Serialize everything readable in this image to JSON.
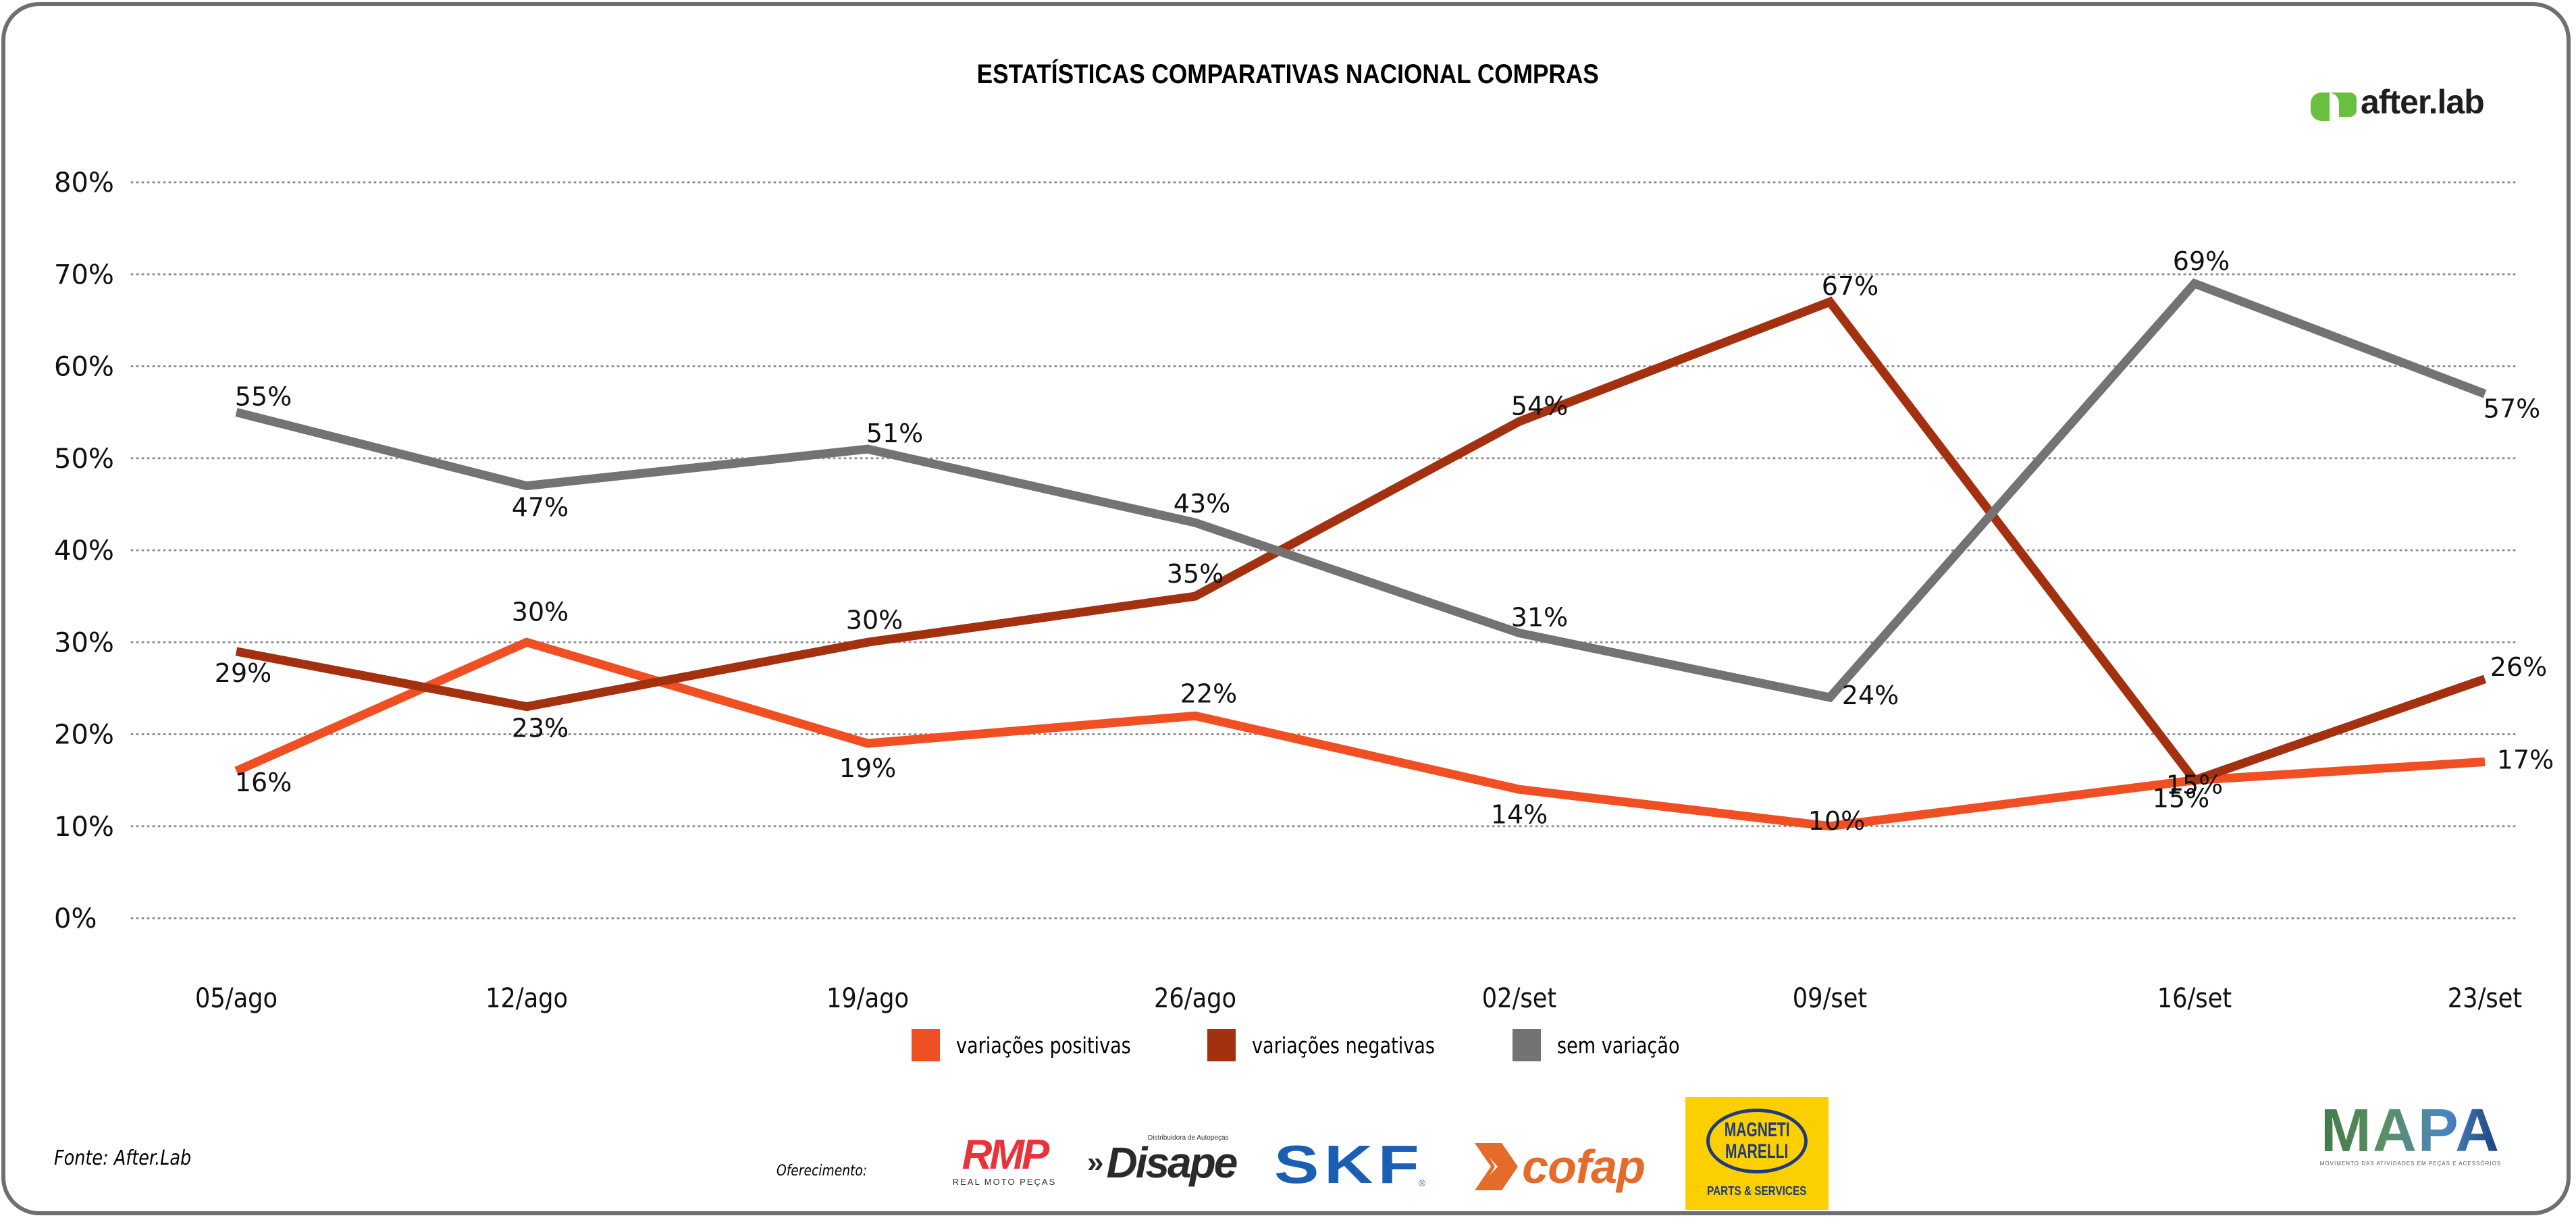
{
  "header": {
    "title": "ESTATÍSTICAS COMPARATIVAS NACIONAL COMPRAS",
    "brand": "after.lab",
    "brand_color": "#6bbf3f"
  },
  "chart_data": {
    "type": "line",
    "title": "ESTATÍSTICAS COMPARATIVAS NACIONAL COMPRAS",
    "xlabel": "",
    "ylabel": "",
    "categories": [
      "05/ago",
      "12/ago",
      "19/ago",
      "26/ago",
      "02/set",
      "09/set",
      "16/set",
      "23/set"
    ],
    "y_ticks": [
      "0%",
      "10%",
      "20%",
      "30%",
      "40%",
      "50%",
      "60%",
      "70%",
      "80%"
    ],
    "ylim": [
      0,
      80
    ],
    "grid": true,
    "grid_style": "dotted",
    "legend_position": "bottom",
    "series": [
      {
        "name": "variações positivas",
        "color": "#f04e23",
        "values": [
          16,
          30,
          19,
          22,
          14,
          10,
          15,
          17
        ],
        "labels": [
          "16%",
          "30%",
          "19%",
          "22%",
          "14%",
          "10%",
          "15%",
          "17%"
        ]
      },
      {
        "name": "variações negativas",
        "color": "#a3300f",
        "values": [
          29,
          23,
          30,
          35,
          54,
          67,
          15,
          26
        ],
        "labels": [
          "29%",
          "23%",
          "30%",
          "35%",
          "54%",
          "67%",
          "15%",
          "26%"
        ]
      },
      {
        "name": "sem variação",
        "color": "#737373",
        "values": [
          55,
          47,
          51,
          43,
          31,
          24,
          69,
          57
        ],
        "labels": [
          "55%",
          "47%",
          "51%",
          "43%",
          "31%",
          "24%",
          "69%",
          "57%"
        ]
      }
    ]
  },
  "footer": {
    "source": "Fonte: After.Lab",
    "offer_label": "Oferecimento:",
    "sponsors": {
      "rmp": {
        "name": "RMP",
        "subtitle": "REAL MOTO PEÇAS"
      },
      "disape": {
        "name": "Disape",
        "subtitle": "Distribuidora de Autopeças"
      },
      "skf": {
        "name": "SKF",
        "mark": "®"
      },
      "cofap": {
        "name": "cofap"
      },
      "magneti": {
        "line1": "MAGNETI",
        "line2": "MARELLI",
        "subtitle": "PARTS & SERVICES"
      },
      "mapa": {
        "name": "MAPA",
        "subtitle": "MOVIMENTO DAS ATIVIDADES EM PEÇAS E ACESSÓRIOS"
      }
    }
  }
}
